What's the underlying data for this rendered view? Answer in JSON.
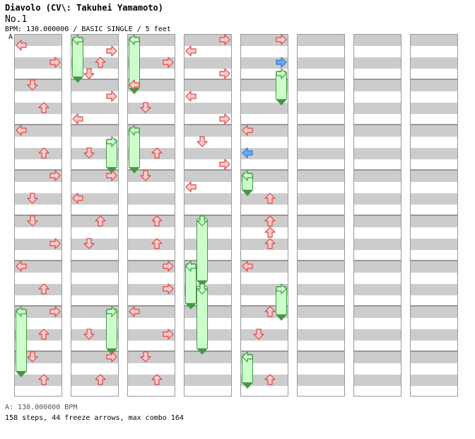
{
  "song": {
    "title": "Diavolo (CV\\: Takuhei Yamamoto)",
    "subtitle": "No.1",
    "meta": "BPM: 130.000000 / BASIC SINGLE / 5 feet",
    "marker": "A"
  },
  "footer": {
    "bpm_line": "A: 130.000000 BPM",
    "stats_line": "158 steps, 44 freeze arrows, max combo 164"
  },
  "colors": {
    "arrow_fill": "#ffcccc",
    "arrow_stroke": "#dd4444",
    "shock_fill": "#66aaff",
    "freeze_fill": "#ccffcc",
    "freeze_stroke": "#449944",
    "lane_gray": "#cccccc"
  },
  "chart": {
    "columns": 8,
    "measures_per_column": 8,
    "lanes": [
      "left",
      "down",
      "up",
      "right"
    ],
    "notes": [
      {
        "c": 0,
        "b": 0.5,
        "l": 0
      },
      {
        "c": 0,
        "b": 2,
        "l": 3
      },
      {
        "c": 0,
        "b": 4,
        "l": 1
      },
      {
        "c": 0,
        "b": 6,
        "l": 2
      },
      {
        "c": 0,
        "b": 8,
        "l": 0
      },
      {
        "c": 0,
        "b": 10,
        "l": 2
      },
      {
        "c": 0,
        "b": 12,
        "l": 3
      },
      {
        "c": 0,
        "b": 14,
        "l": 1
      },
      {
        "c": 0,
        "b": 16,
        "l": 1
      },
      {
        "c": 0,
        "b": 18,
        "l": 3
      },
      {
        "c": 0,
        "b": 20,
        "l": 0
      },
      {
        "c": 0,
        "b": 22,
        "l": 2
      },
      {
        "c": 0,
        "b": 24,
        "l": 0,
        "f": 3
      },
      {
        "c": 0,
        "b": 24,
        "l": 3
      },
      {
        "c": 0,
        "b": 26,
        "l": 2
      },
      {
        "c": 0,
        "b": 28,
        "l": 1
      },
      {
        "c": 0,
        "b": 30,
        "l": 2
      },
      {
        "c": 1,
        "b": 0,
        "l": 0,
        "f": 2
      },
      {
        "c": 1,
        "b": 1,
        "l": 3
      },
      {
        "c": 1,
        "b": 2,
        "l": 2
      },
      {
        "c": 1,
        "b": 3,
        "l": 1
      },
      {
        "c": 1,
        "b": 5,
        "l": 3
      },
      {
        "c": 1,
        "b": 7,
        "l": 0
      },
      {
        "c": 1,
        "b": 9,
        "l": 3,
        "f": 1.5
      },
      {
        "c": 1,
        "b": 10,
        "l": 1
      },
      {
        "c": 1,
        "b": 12,
        "l": 3
      },
      {
        "c": 1,
        "b": 14,
        "l": 0
      },
      {
        "c": 1,
        "b": 16,
        "l": 2
      },
      {
        "c": 1,
        "b": 18,
        "l": 1
      },
      {
        "c": 1,
        "b": 24,
        "l": 3,
        "f": 2
      },
      {
        "c": 1,
        "b": 26,
        "l": 1
      },
      {
        "c": 1,
        "b": 28,
        "l": 3
      },
      {
        "c": 1,
        "b": 30,
        "l": 2
      },
      {
        "c": 2,
        "b": 0,
        "l": 0,
        "f": 2.5
      },
      {
        "c": 2,
        "b": 2,
        "l": 3
      },
      {
        "c": 2,
        "b": 4,
        "l": 0
      },
      {
        "c": 2,
        "b": 6,
        "l": 1
      },
      {
        "c": 2,
        "b": 8,
        "l": 0,
        "f": 2
      },
      {
        "c": 2,
        "b": 10,
        "l": 2
      },
      {
        "c": 2,
        "b": 12,
        "l": 1
      },
      {
        "c": 2,
        "b": 16,
        "l": 2
      },
      {
        "c": 2,
        "b": 18,
        "l": 2
      },
      {
        "c": 2,
        "b": 20,
        "l": 3
      },
      {
        "c": 2,
        "b": 22,
        "l": 3
      },
      {
        "c": 2,
        "b": 24,
        "l": 0
      },
      {
        "c": 2,
        "b": 26,
        "l": 3
      },
      {
        "c": 2,
        "b": 28,
        "l": 1
      },
      {
        "c": 2,
        "b": 30,
        "l": 2
      },
      {
        "c": 3,
        "b": 0,
        "l": 3
      },
      {
        "c": 3,
        "b": 1,
        "l": 0
      },
      {
        "c": 3,
        "b": 3,
        "l": 3
      },
      {
        "c": 3,
        "b": 5,
        "l": 0
      },
      {
        "c": 3,
        "b": 7,
        "l": 3
      },
      {
        "c": 3,
        "b": 9,
        "l": 1
      },
      {
        "c": 3,
        "b": 11,
        "l": 3
      },
      {
        "c": 3,
        "b": 13,
        "l": 0
      },
      {
        "c": 3,
        "b": 16,
        "l": 1,
        "f": 3
      },
      {
        "c": 3,
        "b": 20,
        "l": 0,
        "f": 2
      },
      {
        "c": 3,
        "b": 22,
        "l": 1,
        "f": 3
      },
      {
        "c": 4,
        "b": 0,
        "l": 3
      },
      {
        "c": 4,
        "b": 2,
        "l": 3,
        "shock": true
      },
      {
        "c": 4,
        "b": 3,
        "l": 3,
        "f": 1.5
      },
      {
        "c": 4,
        "b": 8,
        "l": 0
      },
      {
        "c": 4,
        "b": 10,
        "l": 0,
        "shock": true
      },
      {
        "c": 4,
        "b": 12,
        "l": 0,
        "f": 1
      },
      {
        "c": 4,
        "b": 14,
        "l": 2
      },
      {
        "c": 4,
        "b": 16,
        "l": 2
      },
      {
        "c": 4,
        "b": 17,
        "l": 2
      },
      {
        "c": 4,
        "b": 18,
        "l": 2
      },
      {
        "c": 4,
        "b": 20,
        "l": 0
      },
      {
        "c": 4,
        "b": 22,
        "l": 3,
        "f": 1.5
      },
      {
        "c": 4,
        "b": 24,
        "l": 2
      },
      {
        "c": 4,
        "b": 26,
        "l": 1
      },
      {
        "c": 4,
        "b": 28,
        "l": 0,
        "f": 1.5
      },
      {
        "c": 4,
        "b": 30,
        "l": 2
      }
    ]
  }
}
